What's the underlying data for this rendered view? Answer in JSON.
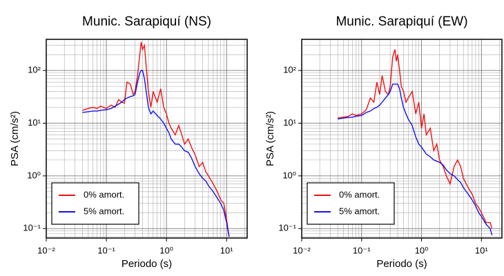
{
  "chart_data": [
    {
      "type": "line",
      "title": "Munic. Sarapiquí (NS)",
      "x_label": "Periodo (s)",
      "y_label": "PSA (cm/s²)",
      "x": [
        0.04,
        0.05,
        0.06,
        0.07,
        0.08,
        0.1,
        0.12,
        0.14,
        0.16,
        0.18,
        0.2,
        0.22,
        0.25,
        0.28,
        0.3,
        0.33,
        0.36,
        0.38,
        0.4,
        0.43,
        0.46,
        0.5,
        0.55,
        0.6,
        0.7,
        0.8,
        0.9,
        1,
        1.1,
        1.2,
        1.4,
        1.6,
        1.8,
        2,
        2.3,
        2.6,
        3,
        3.5,
        4,
        4.5,
        5,
        6,
        7,
        8,
        9,
        10,
        11
      ],
      "series": [
        {
          "name": "0% amort.",
          "color": "#ee1111",
          "values": [
            17.5,
            19,
            20,
            19,
            21,
            19,
            22,
            20,
            28,
            25,
            24,
            60,
            55,
            35,
            40,
            80,
            200,
            350,
            250,
            300,
            120,
            40,
            20,
            40,
            25,
            45,
            20,
            15,
            10,
            8,
            6,
            9,
            6,
            4,
            5,
            3.5,
            2.5,
            1.5,
            1.8,
            1.2,
            1,
            0.7,
            0.5,
            0.35,
            0.3,
            0.15,
            0.07
          ]
        },
        {
          "name": "5% amort.",
          "color": "#1111ee",
          "values": [
            16,
            16.5,
            17,
            17,
            17.5,
            18,
            19,
            21,
            23,
            25,
            28,
            30,
            32,
            33,
            35,
            60,
            90,
            100,
            100,
            70,
            40,
            20,
            15,
            17,
            14,
            12,
            10,
            8,
            6.5,
            5,
            4,
            4,
            3.5,
            3,
            2.8,
            2.2,
            1.5,
            1.1,
            0.9,
            0.8,
            0.65,
            0.5,
            0.38,
            0.3,
            0.22,
            0.13,
            0.07
          ]
        }
      ],
      "log_x": true,
      "log_y": true,
      "grid": true,
      "legend": "lower left",
      "xlim": [
        0.01,
        22
      ],
      "ylim": [
        0.066,
        390
      ],
      "xticks": [
        {
          "value": 0.01,
          "label": "10⁻²"
        },
        {
          "value": 0.1,
          "label": "10⁻¹"
        },
        {
          "value": 1,
          "label": "10⁰"
        },
        {
          "value": 10,
          "label": "10¹"
        }
      ],
      "yticks": [
        {
          "value": 0.1,
          "label": "10⁻¹"
        },
        {
          "value": 1,
          "label": "10⁰"
        },
        {
          "value": 10,
          "label": "10¹"
        },
        {
          "value": 100,
          "label": "10²"
        }
      ]
    },
    {
      "type": "line",
      "title": "Munic. Sarapiquí (EW)",
      "x_label": "Periodo (s)",
      "y_label": "PSA (cm/s²)",
      "x": [
        0.04,
        0.05,
        0.06,
        0.07,
        0.08,
        0.1,
        0.12,
        0.14,
        0.16,
        0.18,
        0.2,
        0.22,
        0.25,
        0.28,
        0.3,
        0.33,
        0.36,
        0.38,
        0.4,
        0.43,
        0.46,
        0.5,
        0.55,
        0.6,
        0.7,
        0.8,
        0.9,
        1,
        1.1,
        1.2,
        1.4,
        1.6,
        1.8,
        2,
        2.3,
        2.6,
        3,
        3.5,
        4,
        4.5,
        5,
        6,
        7,
        8,
        9,
        10,
        12,
        14,
        15
      ],
      "series": [
        {
          "name": "0% amort.",
          "color": "#ee1111",
          "values": [
            12.5,
            13,
            13.5,
            15,
            14,
            15,
            18,
            30,
            25,
            60,
            35,
            80,
            40,
            35,
            50,
            180,
            250,
            150,
            200,
            100,
            50,
            40,
            25,
            30,
            40,
            15,
            25,
            8,
            15,
            6,
            8,
            3,
            4,
            2,
            1.5,
            1.0,
            0.7,
            1.5,
            2,
            1.5,
            0.9,
            0.6,
            0.45,
            0.3,
            0.25,
            0.2,
            0.13,
            0.13,
            0.1
          ]
        },
        {
          "name": "5% amort.",
          "color": "#1111ee",
          "values": [
            12,
            12.5,
            12.8,
            13,
            13.5,
            14,
            16,
            17,
            19,
            20,
            22,
            25,
            30,
            35,
            40,
            55,
            55,
            55,
            55,
            45,
            30,
            20,
            15,
            12,
            9,
            5.5,
            4,
            3.5,
            3,
            2.6,
            2.3,
            2,
            1.9,
            1.8,
            1.6,
            1.3,
            1.1,
            1.0,
            0.85,
            0.75,
            0.6,
            0.45,
            0.35,
            0.27,
            0.2,
            0.17,
            0.12,
            0.1,
            0.075
          ]
        }
      ],
      "log_x": true,
      "log_y": true,
      "grid": true,
      "legend": "lower left",
      "xlim": [
        0.01,
        22
      ],
      "ylim": [
        0.066,
        390
      ],
      "xticks": [
        {
          "value": 0.01,
          "label": "10⁻²"
        },
        {
          "value": 0.1,
          "label": "10⁻¹"
        },
        {
          "value": 1,
          "label": "10⁰"
        },
        {
          "value": 10,
          "label": "10¹"
        }
      ],
      "yticks": [
        {
          "value": 0.1,
          "label": "10⁻¹"
        },
        {
          "value": 1,
          "label": "10⁰"
        },
        {
          "value": 10,
          "label": "10¹"
        },
        {
          "value": 100,
          "label": "10²"
        }
      ]
    }
  ]
}
